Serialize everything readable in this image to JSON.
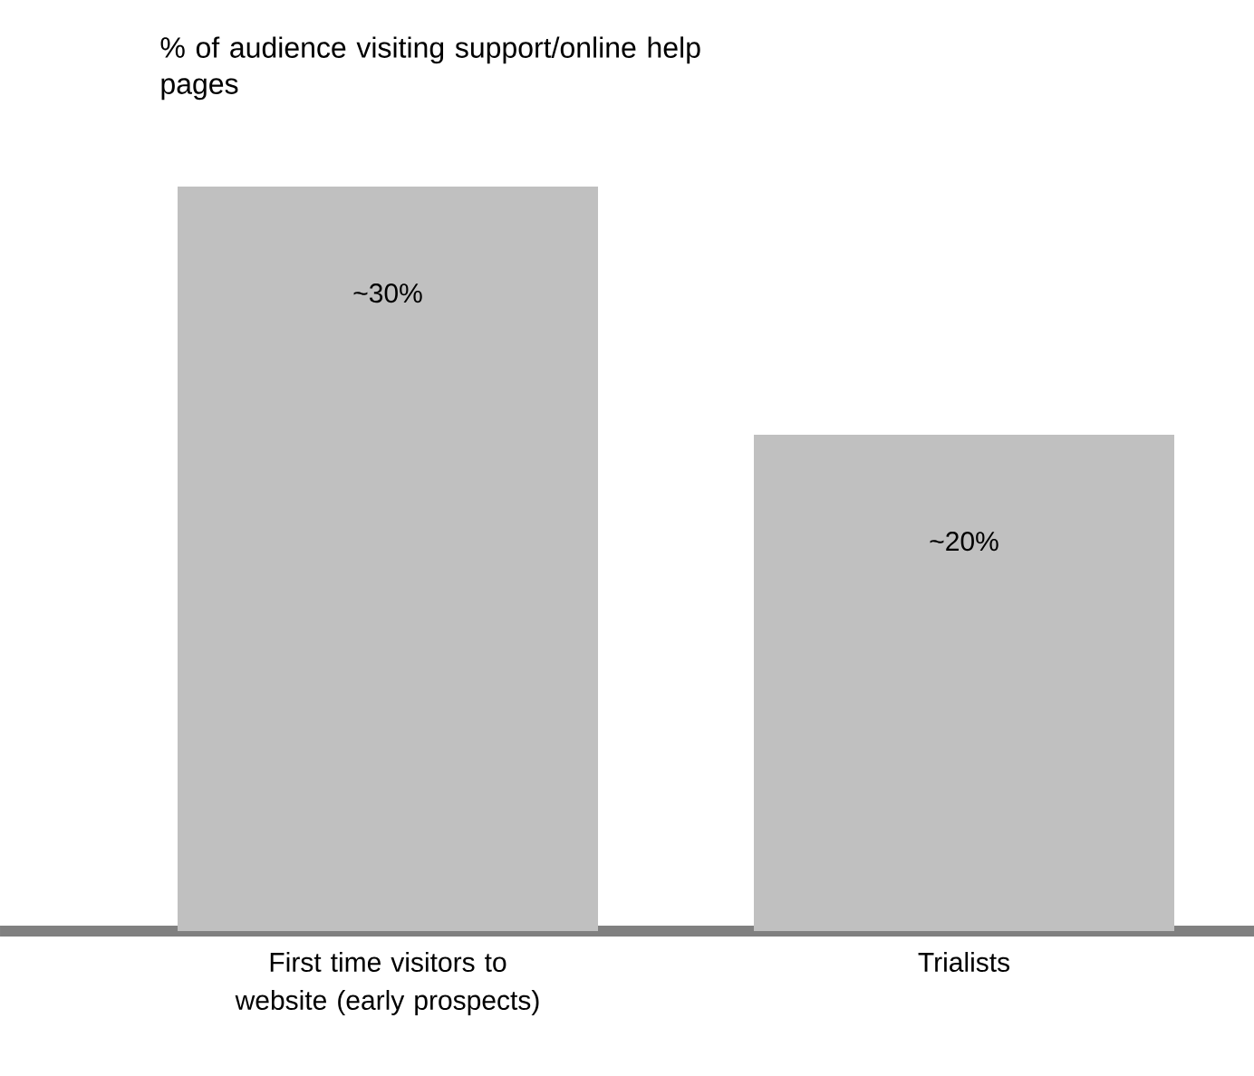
{
  "chart_data": {
    "type": "bar",
    "title": "% of audience visiting support/online help pages",
    "categories": [
      "First time visitors to website (early prospects)",
      "Trialists"
    ],
    "values": [
      30,
      20
    ],
    "value_labels": [
      "~30%",
      "~20%"
    ],
    "color": "#c0c0c0"
  }
}
